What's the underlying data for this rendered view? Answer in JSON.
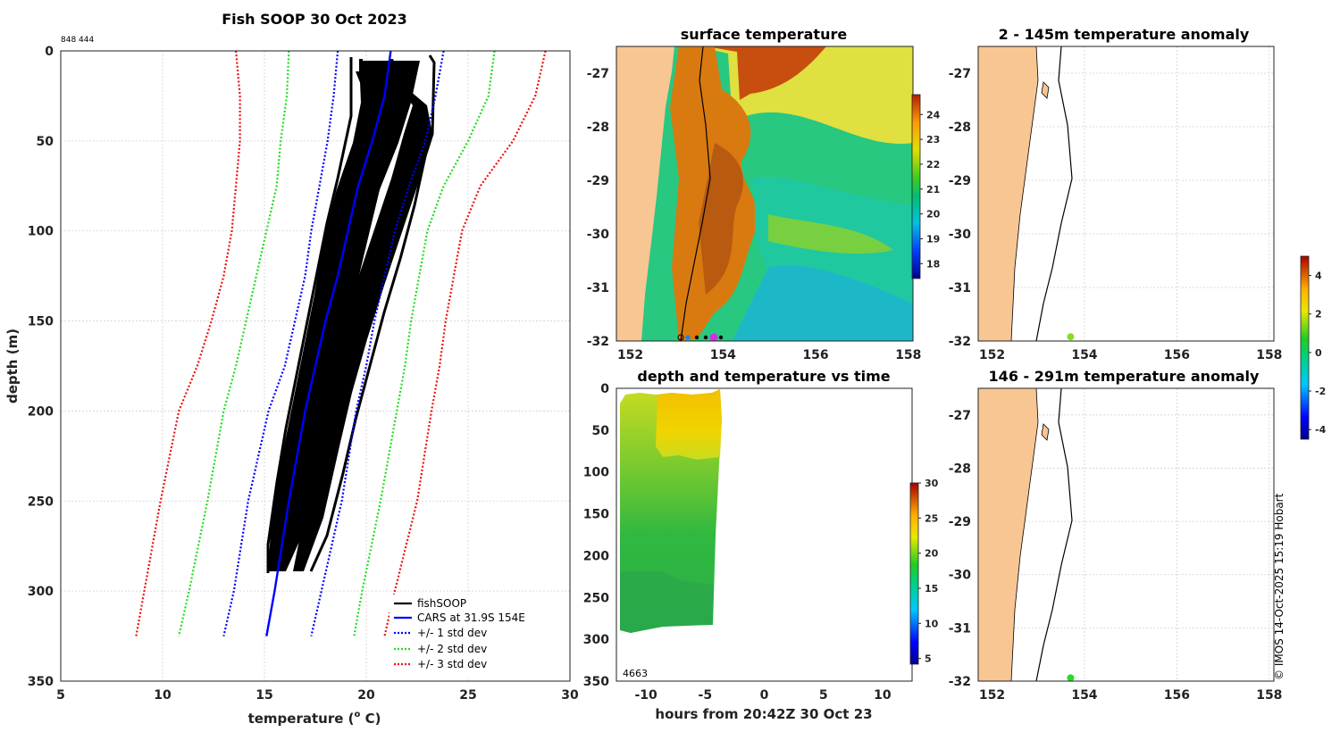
{
  "colors": {
    "land": "#f8c692",
    "profile": "#000000",
    "cars": "#0000ff",
    "sd1": "#0000ff",
    "sd2": "#22dd22",
    "sd3": "#ee1111"
  },
  "chart_data": [
    {
      "id": "profile",
      "type": "line",
      "title": "Fish SOOP 30 Oct 2023",
      "corner_label": "848 444",
      "xlabel": "temperature (",
      "xlabel_sup": "o",
      "xlabel_tail": " C)",
      "ylabel": "depth (m)",
      "xlim": [
        5,
        30
      ],
      "ylim": [
        0,
        350
      ],
      "xticks": [
        5,
        10,
        15,
        20,
        25,
        30
      ],
      "yticks": [
        0,
        50,
        100,
        150,
        200,
        250,
        300,
        350
      ],
      "legend": [
        "fishSOOP",
        "CARS at 31.9S 154E",
        "+/- 1 std dev",
        "+/- 2 std dev",
        "+/- 3 std dev"
      ],
      "cars": {
        "depth": [
          0,
          25,
          50,
          75,
          100,
          125,
          150,
          175,
          200,
          250,
          300,
          325
        ],
        "temp": [
          21.2,
          20.9,
          20.3,
          19.6,
          19.1,
          18.6,
          18.0,
          17.5,
          17.0,
          16.2,
          15.5,
          15.1
        ]
      },
      "sd": [
        {
          "name": "+/- 1 std dev",
          "minus": [
            18.6,
            18.4,
            18.1,
            17.7,
            17.3,
            17.0,
            16.5,
            16.0,
            15.2,
            14.2,
            13.5,
            13.0
          ],
          "plus": [
            23.8,
            23.4,
            22.9,
            22.1,
            21.4,
            20.9,
            20.4,
            20.0,
            19.5,
            18.8,
            17.8,
            17.3
          ]
        },
        {
          "name": "+/- 2 std dev",
          "minus": [
            16.2,
            16.1,
            15.8,
            15.6,
            15.1,
            14.6,
            14.1,
            13.6,
            13.0,
            12.2,
            11.3,
            10.8
          ],
          "plus": [
            26.3,
            26.0,
            25.0,
            23.8,
            23.0,
            22.6,
            22.2,
            21.9,
            21.5,
            20.7,
            19.8,
            19.4
          ]
        },
        {
          "name": "+/- 3 std dev",
          "minus": [
            13.6,
            13.8,
            13.8,
            13.6,
            13.4,
            13.0,
            12.4,
            11.7,
            10.8,
            9.9,
            9.1,
            8.7
          ],
          "plus": [
            28.8,
            28.3,
            27.2,
            25.6,
            24.7,
            24.3,
            23.9,
            23.6,
            23.2,
            22.5,
            21.4,
            20.9
          ]
        }
      ]
    },
    {
      "id": "sst",
      "type": "heatmap",
      "title": "surface temperature",
      "xticks": [
        152,
        154,
        156,
        158
      ],
      "yticks": [
        -27,
        -28,
        -29,
        -30,
        -31,
        -32
      ],
      "xlim": [
        151.7,
        158.1
      ],
      "ylim": [
        -32,
        -26.5
      ],
      "colorbar": {
        "ticks": [
          18,
          19,
          20,
          21,
          22,
          23,
          24
        ]
      }
    },
    {
      "id": "depth_time",
      "type": "heatmap",
      "title": "depth and temperature vs time",
      "xlabel": "hours from 20:42Z 30 Oct 23",
      "xticks": [
        -10,
        -5,
        0,
        5,
        10
      ],
      "yticks": [
        0,
        50,
        100,
        150,
        200,
        250,
        300,
        350
      ],
      "xlim": [
        -12.5,
        12.5
      ],
      "ylim": [
        0,
        350
      ],
      "note": "4663",
      "colorbar": {
        "ticks": [
          5,
          10,
          15,
          20,
          25,
          30
        ]
      }
    },
    {
      "id": "anom_shallow",
      "type": "heatmap",
      "title": "2 - 145m temperature anomaly",
      "xticks": [
        152,
        154,
        156,
        158
      ],
      "yticks": [
        -27,
        -28,
        -29,
        -30,
        -31,
        -32
      ],
      "xlim": [
        151.7,
        158.1
      ],
      "ylim": [
        -32,
        -26.5
      ],
      "point": {
        "lon": 153.7,
        "lat": -31.92,
        "anomaly": 1.2
      }
    },
    {
      "id": "anom_deep",
      "type": "heatmap",
      "title": "146 - 291m temperature anomaly",
      "xticks": [
        152,
        154,
        156,
        158
      ],
      "yticks": [
        -27,
        -28,
        -29,
        -30,
        -31,
        -32
      ],
      "xlim": [
        151.7,
        158.1
      ],
      "ylim": [
        -32,
        -26.5
      ],
      "point": {
        "lon": 153.7,
        "lat": -31.94,
        "anomaly": 0.9
      },
      "colorbar": {
        "ticks": [
          -4,
          -2,
          0,
          2,
          4
        ]
      }
    }
  ],
  "footer": {
    "credit": "© IMOS 14-Oct-2025 15:19 Hobart"
  }
}
